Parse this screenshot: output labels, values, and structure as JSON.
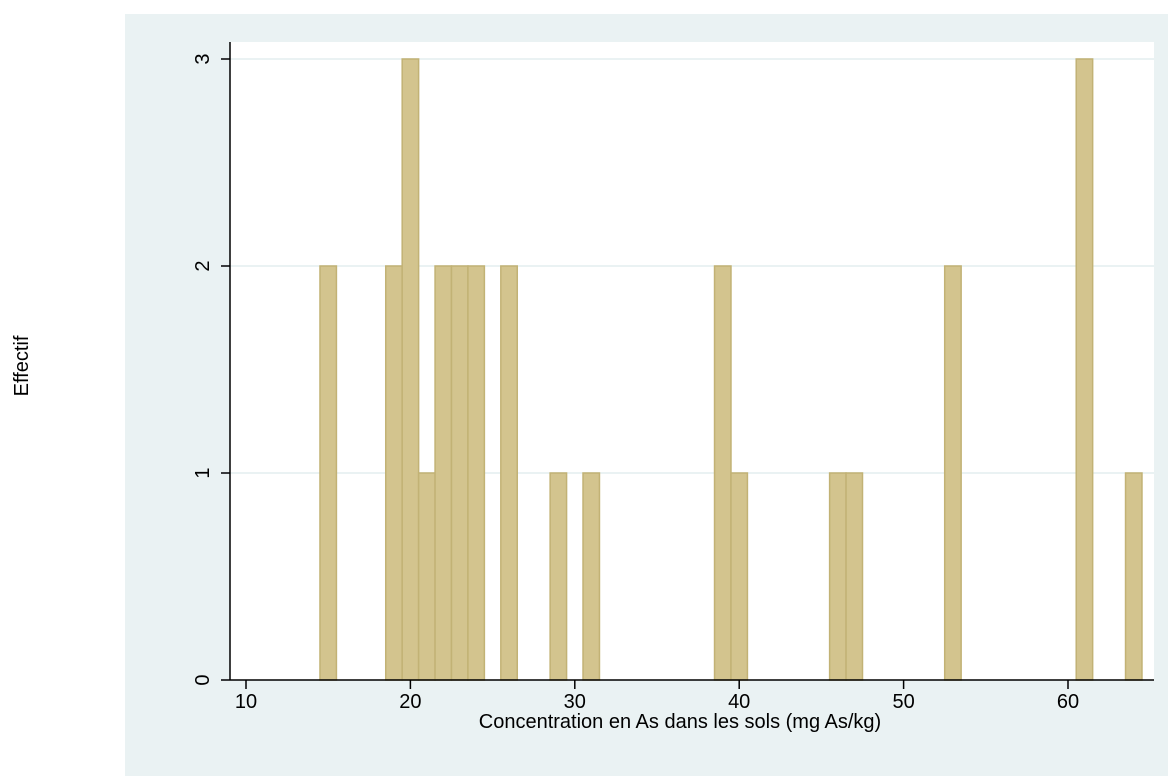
{
  "chart_data": {
    "type": "bar",
    "title": "",
    "xlabel": "Concentration en As dans les sols (mg As/kg)",
    "ylabel": "Effectif",
    "xlim": [
      10,
      65
    ],
    "ylim": [
      0,
      3
    ],
    "x_ticks": [
      "10",
      "20",
      "30",
      "40",
      "50",
      "60"
    ],
    "y_ticks": [
      "0",
      "1",
      "2",
      "3"
    ],
    "grid": true,
    "bin_width": 1,
    "bins": [
      {
        "x": 15,
        "count": 2
      },
      {
        "x": 19,
        "count": 2
      },
      {
        "x": 20,
        "count": 3
      },
      {
        "x": 21,
        "count": 1
      },
      {
        "x": 22,
        "count": 2
      },
      {
        "x": 23,
        "count": 2
      },
      {
        "x": 24,
        "count": 2
      },
      {
        "x": 26,
        "count": 2
      },
      {
        "x": 29,
        "count": 1
      },
      {
        "x": 31,
        "count": 1
      },
      {
        "x": 39,
        "count": 2
      },
      {
        "x": 40,
        "count": 1
      },
      {
        "x": 46,
        "count": 1
      },
      {
        "x": 47,
        "count": 1
      },
      {
        "x": 53,
        "count": 2
      },
      {
        "x": 61,
        "count": 3
      },
      {
        "x": 64,
        "count": 1
      }
    ],
    "colors": {
      "bar_fill": "#d3c48e",
      "bar_stroke": "#c2b275",
      "plot_region": "#eaf2f3",
      "plot_area": "#ffffff",
      "gridline": "#eaf2f3",
      "axis": "#000000"
    }
  }
}
